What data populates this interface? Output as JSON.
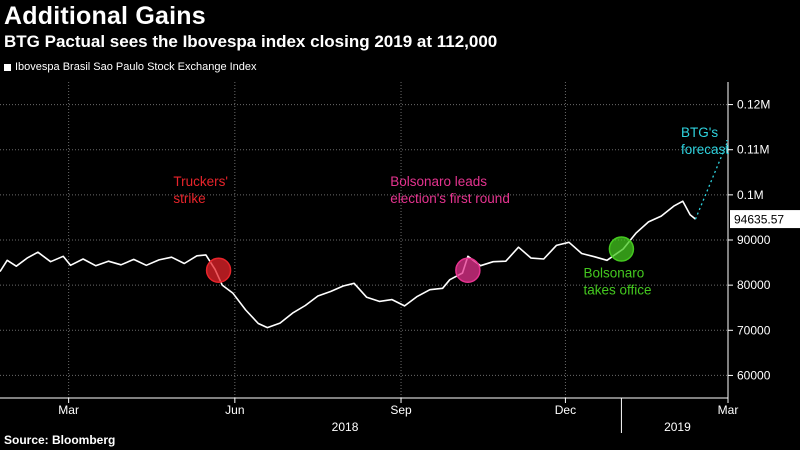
{
  "header": {
    "title": "Additional Gains",
    "subtitle": "BTG Pactual sees the Ibovespa index closing 2019 at 112,000"
  },
  "footer": {
    "source": "Source: Bloomberg"
  },
  "colors": {
    "background": "#000000",
    "line": "#ffffff",
    "grid": "#6b6b6b",
    "truckers": "#e8242b",
    "bolsonaro_leads": "#e5338f",
    "bolsonaro_office": "#44c81f",
    "forecast": "#2fd3df"
  },
  "chart_data": {
    "type": "line",
    "legend": {
      "position": "top-left",
      "entries": [
        "Ibovespa Brasil Sao Paulo Stock Exchange Index"
      ]
    },
    "grid": true,
    "x_ticks": [
      {
        "label": "Mar",
        "date": "2018-03-01"
      },
      {
        "label": "Jun",
        "date": "2018-06-01"
      },
      {
        "label": "Sep",
        "date": "2018-09-01"
      },
      {
        "label": "Dec",
        "date": "2018-12-01"
      },
      {
        "label": "Mar",
        "date": "2019-03-01"
      }
    ],
    "year_labels": [
      {
        "label": "2018",
        "date": "2018-08-01"
      },
      {
        "label": "2019",
        "date": "2019-02-01"
      }
    ],
    "y_ticks": [
      {
        "value": 60000,
        "label": "60000"
      },
      {
        "value": 70000,
        "label": "70000"
      },
      {
        "value": 80000,
        "label": "80000"
      },
      {
        "value": 90000,
        "label": "90000"
      },
      {
        "value": 100000,
        "label": "0.1M"
      },
      {
        "value": 110000,
        "label": "0.11M"
      },
      {
        "value": 120000,
        "label": "0.12M"
      }
    ],
    "ylim": [
      55000,
      125000
    ],
    "xlim": [
      "2018-01-22",
      "2019-03-01"
    ],
    "last_value_label": "94635.57",
    "series": [
      {
        "values": [
          [
            "2018-01-22",
            83000
          ],
          [
            "2018-01-26",
            85500
          ],
          [
            "2018-01-31",
            84200
          ],
          [
            "2018-02-06",
            86000
          ],
          [
            "2018-02-12",
            87300
          ],
          [
            "2018-02-19",
            85200
          ],
          [
            "2018-02-26",
            86400
          ],
          [
            "2018-03-02",
            84400
          ],
          [
            "2018-03-09",
            85800
          ],
          [
            "2018-03-16",
            84300
          ],
          [
            "2018-03-23",
            85300
          ],
          [
            "2018-03-30",
            84500
          ],
          [
            "2018-04-06",
            85700
          ],
          [
            "2018-04-13",
            84400
          ],
          [
            "2018-04-20",
            85600
          ],
          [
            "2018-04-27",
            86200
          ],
          [
            "2018-05-04",
            84800
          ],
          [
            "2018-05-11",
            86500
          ],
          [
            "2018-05-16",
            86700
          ],
          [
            "2018-05-21",
            83500
          ],
          [
            "2018-05-25",
            80000
          ],
          [
            "2018-05-31",
            78200
          ],
          [
            "2018-06-07",
            74500
          ],
          [
            "2018-06-14",
            71500
          ],
          [
            "2018-06-19",
            70600
          ],
          [
            "2018-06-26",
            71600
          ],
          [
            "2018-07-03",
            73800
          ],
          [
            "2018-07-10",
            75500
          ],
          [
            "2018-07-17",
            77600
          ],
          [
            "2018-07-24",
            78600
          ],
          [
            "2018-07-31",
            79800
          ],
          [
            "2018-08-06",
            80400
          ],
          [
            "2018-08-13",
            77300
          ],
          [
            "2018-08-20",
            76400
          ],
          [
            "2018-08-27",
            76800
          ],
          [
            "2018-09-03",
            75400
          ],
          [
            "2018-09-10",
            77500
          ],
          [
            "2018-09-17",
            79000
          ],
          [
            "2018-09-24",
            79300
          ],
          [
            "2018-09-28",
            81200
          ],
          [
            "2018-10-05",
            82700
          ],
          [
            "2018-10-08",
            86400
          ],
          [
            "2018-10-15",
            84300
          ],
          [
            "2018-10-22",
            85200
          ],
          [
            "2018-10-29",
            85300
          ],
          [
            "2018-11-05",
            88400
          ],
          [
            "2018-11-12",
            86000
          ],
          [
            "2018-11-19",
            85800
          ],
          [
            "2018-11-26",
            88800
          ],
          [
            "2018-12-03",
            89500
          ],
          [
            "2018-12-10",
            87000
          ],
          [
            "2018-12-17",
            86300
          ],
          [
            "2018-12-24",
            85500
          ],
          [
            "2019-01-02",
            88000
          ],
          [
            "2019-01-09",
            91500
          ],
          [
            "2019-01-16",
            94000
          ],
          [
            "2019-01-23",
            95300
          ],
          [
            "2019-01-30",
            97500
          ],
          [
            "2019-02-04",
            98600
          ],
          [
            "2019-02-08",
            95600
          ],
          [
            "2019-02-11",
            94635.57
          ]
        ]
      },
      {
        "name": "BTG's forecast",
        "dashed": true,
        "values": [
          [
            "2019-02-11",
            94635.57
          ],
          [
            "2019-03-01",
            112000
          ]
        ]
      }
    ],
    "annotations": [
      {
        "lines": [
          "Truckers'",
          "strike"
        ],
        "date": "2018-05-23",
        "value": 83300,
        "color_key": "truckers",
        "text_date": "2018-04-28",
        "text_value": 102000
      },
      {
        "lines": [
          "Bolsonaro leads",
          "election's first round"
        ],
        "date": "2018-10-08",
        "value": 83300,
        "color_key": "bolsonaro_leads",
        "text_date": "2018-08-26",
        "text_value": 102000
      },
      {
        "lines": [
          "Bolsonaro",
          "takes office"
        ],
        "date": "2019-01-01",
        "value": 88000,
        "color_key": "bolsonaro_office",
        "text_date": "2018-12-11",
        "text_value": 81700
      },
      {
        "lines": [
          "BTG's",
          "forecast"
        ],
        "color_key": "forecast",
        "text_date": "2019-02-03",
        "text_value": 112800
      }
    ]
  }
}
